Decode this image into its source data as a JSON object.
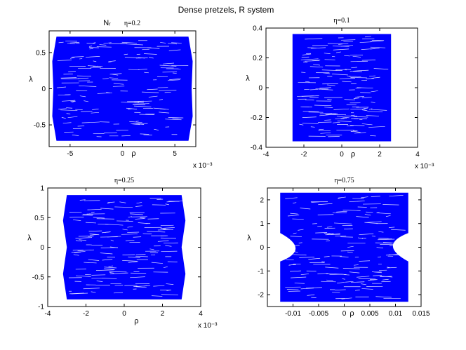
{
  "figure": {
    "suptitle": "Dense pretzels, R system",
    "mark_color": "#0000ff"
  },
  "chart_data": [
    {
      "type": "scatter",
      "title_prefix": "Nᵣ",
      "title": "η=0.2",
      "xlabel": "ρ",
      "ylabel": "λ",
      "xlim": [
        -7,
        7
      ],
      "ylim": [
        -0.8,
        0.8
      ],
      "x_exponent_label": "x 10⁻³",
      "xticks": [
        {
          "v": -5,
          "label": "-5"
        },
        {
          "v": 0,
          "label": "0"
        },
        {
          "v": 5,
          "label": "5"
        }
      ],
      "yticks": [
        {
          "v": 0.5,
          "label": "0.5"
        },
        {
          "v": 0,
          "label": "0"
        },
        {
          "v": -0.5,
          "label": "-0.5"
        }
      ],
      "series": [
        {
          "outline_x": [
            -6.3,
            -6.7,
            -6.6,
            -6.7,
            -6.3
          ],
          "outline_y": [
            0.72,
            0.38,
            0,
            -0.38,
            -0.72
          ],
          "x_right_mirror": true,
          "x_range": [
            -6.7,
            6.6
          ],
          "y_range": [
            -0.72,
            0.72
          ]
        }
      ]
    },
    {
      "type": "scatter",
      "title": "η=0.1",
      "xlabel": "ρ",
      "ylabel": "λ",
      "xlim": [
        -4,
        4
      ],
      "ylim": [
        -0.4,
        0.4
      ],
      "x_exponent_label": "x 10⁻³",
      "xticks": [
        {
          "v": -4,
          "label": "-4"
        },
        {
          "v": -2,
          "label": "-2"
        },
        {
          "v": 0,
          "label": "0"
        },
        {
          "v": 2,
          "label": "2"
        },
        {
          "v": 4,
          "label": "4"
        }
      ],
      "yticks": [
        {
          "v": 0.4,
          "label": "0.4"
        },
        {
          "v": 0.2,
          "label": "0.2"
        },
        {
          "v": 0,
          "label": "0"
        },
        {
          "v": -0.2,
          "label": "-0.2"
        },
        {
          "v": -0.4,
          "label": "-0.4"
        }
      ],
      "series": [
        {
          "x_range": [
            -2.6,
            2.6
          ],
          "y_range": [
            -0.36,
            0.36
          ]
        }
      ]
    },
    {
      "type": "scatter",
      "title": "η=0.25",
      "xlabel": "ρ",
      "ylabel": "λ",
      "xlim": [
        -4,
        4
      ],
      "ylim": [
        -1,
        1
      ],
      "x_exponent_label": "x 10⁻³",
      "xticks": [
        {
          "v": -4,
          "label": "-4"
        },
        {
          "v": -2,
          "label": "-2"
        },
        {
          "v": 0,
          "label": "0"
        },
        {
          "v": 2,
          "label": "2"
        },
        {
          "v": 4,
          "label": "4"
        }
      ],
      "yticks": [
        {
          "v": 1,
          "label": "1"
        },
        {
          "v": 0.5,
          "label": "0.5"
        },
        {
          "v": 0,
          "label": "0"
        },
        {
          "v": -0.5,
          "label": "-0.5"
        },
        {
          "v": -1,
          "label": "-1"
        }
      ],
      "series": [
        {
          "outline_x": [
            -3.0,
            -3.2,
            -3.0,
            -3.2,
            -3.0
          ],
          "outline_y": [
            0.88,
            0.45,
            0,
            -0.45,
            -0.88
          ],
          "x_right_mirror": true,
          "x_range": [
            -3.2,
            3.2
          ],
          "y_range": [
            -0.88,
            0.88
          ]
        }
      ]
    },
    {
      "type": "scatter",
      "title": "η=0.75",
      "xlabel": "ρ",
      "ylabel": "λ",
      "xlim": [
        -0.015,
        0.015
      ],
      "ylim": [
        -2.5,
        2.5
      ],
      "xticks": [
        {
          "v": -0.01,
          "label": "-0.01"
        },
        {
          "v": -0.005,
          "label": "-0.005"
        },
        {
          "v": 0,
          "label": "0"
        },
        {
          "v": 0.005,
          "label": "0.005"
        },
        {
          "v": 0.01,
          "label": "0.01"
        },
        {
          "v": 0.015,
          "label": "0.015"
        }
      ],
      "yticks": [
        {
          "v": 2,
          "label": "2"
        },
        {
          "v": 1,
          "label": "1"
        },
        {
          "v": 0,
          "label": "0"
        },
        {
          "v": -1,
          "label": "-1"
        },
        {
          "v": -2,
          "label": "-2"
        }
      ],
      "series": [
        {
          "x_range": [
            -0.0125,
            0.0125
          ],
          "y_range": [
            -2.3,
            2.3
          ],
          "waist_x": 0.0065,
          "waist_y": 0.1
        }
      ]
    }
  ]
}
